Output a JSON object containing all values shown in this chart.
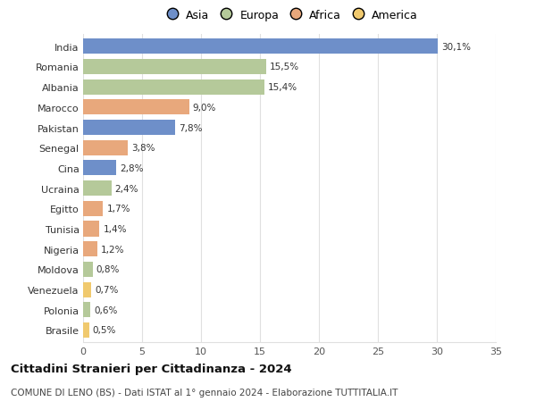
{
  "countries": [
    "India",
    "Romania",
    "Albania",
    "Marocco",
    "Pakistan",
    "Senegal",
    "Cina",
    "Ucraina",
    "Egitto",
    "Tunisia",
    "Nigeria",
    "Moldova",
    "Venezuela",
    "Polonia",
    "Brasile"
  ],
  "values": [
    30.1,
    15.5,
    15.4,
    9.0,
    7.8,
    3.8,
    2.8,
    2.4,
    1.7,
    1.4,
    1.2,
    0.8,
    0.7,
    0.6,
    0.5
  ],
  "labels": [
    "30,1%",
    "15,5%",
    "15,4%",
    "9,0%",
    "7,8%",
    "3,8%",
    "2,8%",
    "2,4%",
    "1,7%",
    "1,4%",
    "1,2%",
    "0,8%",
    "0,7%",
    "0,6%",
    "0,5%"
  ],
  "continents": [
    "Asia",
    "Europa",
    "Europa",
    "Africa",
    "Asia",
    "Africa",
    "Asia",
    "Europa",
    "Africa",
    "Africa",
    "Africa",
    "Europa",
    "America",
    "Europa",
    "America"
  ],
  "colors": {
    "Asia": "#6e8fc9",
    "Europa": "#b5c99a",
    "Africa": "#e8a87c",
    "America": "#f0c96e"
  },
  "legend_order": [
    "Asia",
    "Europa",
    "Africa",
    "America"
  ],
  "title": "Cittadini Stranieri per Cittadinanza - 2024",
  "subtitle": "COMUNE DI LENO (BS) - Dati ISTAT al 1° gennaio 2024 - Elaborazione TUTTITALIA.IT",
  "xlim": [
    0,
    35
  ],
  "xticks": [
    0,
    5,
    10,
    15,
    20,
    25,
    30,
    35
  ],
  "background_color": "#ffffff",
  "grid_color": "#e0e0e0",
  "bar_height": 0.75
}
